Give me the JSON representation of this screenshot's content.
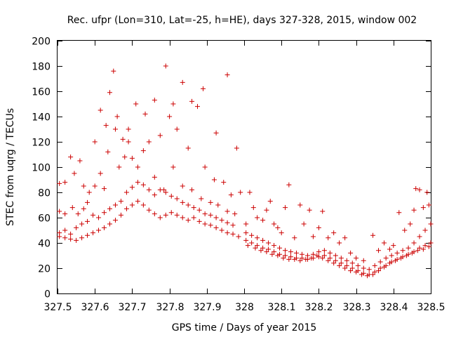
{
  "chart_data": {
    "type": "scatter",
    "title": "Rec. ufpr (Lon=310, Lat=-25, h=HE), days 327-328, 2015, window 002",
    "xlabel": "GPS time / Days of year 2015",
    "ylabel": "STEC from uqrg / TECUs",
    "xlim": [
      327.5,
      328.5
    ],
    "ylim": [
      0,
      200
    ],
    "xticks": [
      327.5,
      327.6,
      327.7,
      327.8,
      327.9,
      328.0,
      328.1,
      328.2,
      328.3,
      328.4,
      328.5
    ],
    "xtick_labels": [
      "327.5",
      "327.6",
      "327.7",
      "327.8",
      "327.9",
      "328",
      "328.1",
      "328.2",
      "328.3",
      "328.4",
      "328.5"
    ],
    "yticks": [
      0,
      20,
      40,
      60,
      80,
      100,
      120,
      140,
      160,
      180,
      200
    ],
    "ytick_labels": [
      "0",
      "20",
      "40",
      "60",
      "80",
      "100",
      "120",
      "140",
      "160",
      "180",
      "200"
    ],
    "grid": false,
    "marker": "+",
    "color": "#cc0000",
    "series": [
      {
        "points": [
          [
            327.505,
            87
          ],
          [
            327.52,
            88
          ],
          [
            327.535,
            108
          ],
          [
            327.545,
            95
          ],
          [
            327.56,
            105
          ],
          [
            327.57,
            85
          ],
          [
            327.585,
            80
          ],
          [
            327.6,
            120
          ],
          [
            327.615,
            145
          ],
          [
            327.63,
            133
          ],
          [
            327.64,
            159
          ],
          [
            327.65,
            176
          ],
          [
            327.66,
            140
          ],
          [
            327.675,
            122
          ],
          [
            327.69,
            130
          ],
          [
            327.71,
            150
          ],
          [
            327.735,
            142
          ],
          [
            327.76,
            153
          ],
          [
            327.79,
            180
          ],
          [
            327.81,
            150
          ],
          [
            327.835,
            167
          ],
          [
            327.86,
            152
          ],
          [
            327.89,
            162
          ],
          [
            327.955,
            173
          ],
          [
            327.925,
            127
          ],
          [
            327.98,
            115
          ],
          [
            327.505,
            65
          ],
          [
            327.52,
            63
          ],
          [
            327.54,
            68
          ],
          [
            327.555,
            63
          ],
          [
            327.57,
            67
          ],
          [
            327.58,
            72
          ],
          [
            327.6,
            85
          ],
          [
            327.615,
            95
          ],
          [
            327.625,
            83
          ],
          [
            327.635,
            112
          ],
          [
            327.655,
            130
          ],
          [
            327.665,
            100
          ],
          [
            327.68,
            108
          ],
          [
            327.69,
            120
          ],
          [
            327.7,
            107
          ],
          [
            327.715,
            100
          ],
          [
            327.73,
            113
          ],
          [
            327.745,
            120
          ],
          [
            327.76,
            92
          ],
          [
            327.775,
            125
          ],
          [
            327.785,
            82
          ],
          [
            327.8,
            140
          ],
          [
            327.81,
            100
          ],
          [
            327.82,
            130
          ],
          [
            327.835,
            85
          ],
          [
            327.85,
            115
          ],
          [
            327.86,
            82
          ],
          [
            327.875,
            148
          ],
          [
            327.885,
            75
          ],
          [
            327.895,
            100
          ],
          [
            327.91,
            72
          ],
          [
            327.92,
            90
          ],
          [
            327.93,
            70
          ],
          [
            327.945,
            88
          ],
          [
            327.955,
            65
          ],
          [
            327.965,
            78
          ],
          [
            327.975,
            63
          ],
          [
            327.99,
            80
          ],
          [
            327.505,
            48
          ],
          [
            327.52,
            50
          ],
          [
            327.535,
            47
          ],
          [
            327.55,
            52
          ],
          [
            327.565,
            55
          ],
          [
            327.58,
            57
          ],
          [
            327.595,
            62
          ],
          [
            327.61,
            60
          ],
          [
            327.625,
            64
          ],
          [
            327.64,
            67
          ],
          [
            327.655,
            70
          ],
          [
            327.67,
            73
          ],
          [
            327.685,
            80
          ],
          [
            327.7,
            84
          ],
          [
            327.715,
            88
          ],
          [
            327.73,
            86
          ],
          [
            327.745,
            82
          ],
          [
            327.76,
            78
          ],
          [
            327.775,
            82
          ],
          [
            327.79,
            80
          ],
          [
            327.805,
            77
          ],
          [
            327.82,
            75
          ],
          [
            327.835,
            72
          ],
          [
            327.85,
            70
          ],
          [
            327.865,
            68
          ],
          [
            327.88,
            66
          ],
          [
            327.895,
            63
          ],
          [
            327.91,
            62
          ],
          [
            327.925,
            60
          ],
          [
            327.94,
            58
          ],
          [
            327.955,
            56
          ],
          [
            327.97,
            54
          ],
          [
            327.505,
            45
          ],
          [
            327.52,
            44
          ],
          [
            327.535,
            43
          ],
          [
            327.55,
            42
          ],
          [
            327.565,
            44
          ],
          [
            327.58,
            46
          ],
          [
            327.595,
            48
          ],
          [
            327.61,
            50
          ],
          [
            327.625,
            52
          ],
          [
            327.64,
            55
          ],
          [
            327.655,
            58
          ],
          [
            327.67,
            62
          ],
          [
            327.685,
            67
          ],
          [
            327.7,
            70
          ],
          [
            327.715,
            73
          ],
          [
            327.73,
            70
          ],
          [
            327.745,
            66
          ],
          [
            327.76,
            63
          ],
          [
            327.775,
            60
          ],
          [
            327.79,
            62
          ],
          [
            327.805,
            64
          ],
          [
            327.82,
            62
          ],
          [
            327.835,
            60
          ],
          [
            327.85,
            58
          ],
          [
            327.865,
            60
          ],
          [
            327.88,
            57
          ],
          [
            327.895,
            55
          ],
          [
            327.91,
            54
          ],
          [
            327.925,
            52
          ],
          [
            327.94,
            50
          ],
          [
            327.955,
            48
          ],
          [
            327.97,
            47
          ],
          [
            327.985,
            45
          ],
          [
            328.005,
            55
          ],
          [
            328.015,
            80
          ],
          [
            328.025,
            68
          ],
          [
            328.035,
            60
          ],
          [
            328.05,
            58
          ],
          [
            328.06,
            66
          ],
          [
            328.07,
            73
          ],
          [
            328.08,
            55
          ],
          [
            328.09,
            52
          ],
          [
            328.1,
            48
          ],
          [
            328.11,
            68
          ],
          [
            328.12,
            86
          ],
          [
            328.135,
            44
          ],
          [
            328.15,
            70
          ],
          [
            328.16,
            55
          ],
          [
            328.175,
            66
          ],
          [
            328.185,
            45
          ],
          [
            328.2,
            52
          ],
          [
            328.21,
            65
          ],
          [
            328.225,
            44
          ],
          [
            328.24,
            48
          ],
          [
            328.255,
            40
          ],
          [
            328.27,
            44
          ],
          [
            328.285,
            32
          ],
          [
            328.3,
            28
          ],
          [
            328.32,
            26
          ],
          [
            328.345,
            46
          ],
          [
            328.36,
            34
          ],
          [
            328.375,
            40
          ],
          [
            328.39,
            35
          ],
          [
            328.4,
            38
          ],
          [
            328.415,
            64
          ],
          [
            328.43,
            50
          ],
          [
            328.445,
            55
          ],
          [
            328.455,
            66
          ],
          [
            328.46,
            83
          ],
          [
            328.47,
            82
          ],
          [
            328.48,
            68
          ],
          [
            328.49,
            80
          ],
          [
            328.495,
            70
          ],
          [
            328.005,
            48
          ],
          [
            328.02,
            46
          ],
          [
            328.035,
            44
          ],
          [
            328.05,
            42
          ],
          [
            328.065,
            40
          ],
          [
            328.08,
            38
          ],
          [
            328.095,
            36
          ],
          [
            328.11,
            34
          ],
          [
            328.125,
            33
          ],
          [
            328.14,
            32
          ],
          [
            328.155,
            31
          ],
          [
            328.17,
            30
          ],
          [
            328.185,
            31
          ],
          [
            328.2,
            33
          ],
          [
            328.215,
            34
          ],
          [
            328.23,
            32
          ],
          [
            328.245,
            30
          ],
          [
            328.26,
            28
          ],
          [
            328.275,
            26
          ],
          [
            328.29,
            24
          ],
          [
            328.305,
            22
          ],
          [
            328.32,
            20
          ],
          [
            328.335,
            19
          ],
          [
            328.35,
            22
          ],
          [
            328.365,
            25
          ],
          [
            328.38,
            28
          ],
          [
            328.395,
            30
          ],
          [
            328.41,
            32
          ],
          [
            328.425,
            34
          ],
          [
            328.44,
            36
          ],
          [
            328.455,
            40
          ],
          [
            328.47,
            45
          ],
          [
            328.485,
            50
          ],
          [
            328.5,
            55
          ],
          [
            328.005,
            42
          ],
          [
            328.02,
            40
          ],
          [
            328.035,
            38
          ],
          [
            328.05,
            36
          ],
          [
            328.065,
            35
          ],
          [
            328.08,
            33
          ],
          [
            328.095,
            31
          ],
          [
            328.11,
            30
          ],
          [
            328.125,
            29
          ],
          [
            328.14,
            28
          ],
          [
            328.155,
            28
          ],
          [
            328.17,
            27
          ],
          [
            328.185,
            28
          ],
          [
            328.2,
            29
          ],
          [
            328.215,
            30
          ],
          [
            328.23,
            28
          ],
          [
            328.245,
            26
          ],
          [
            328.26,
            24
          ],
          [
            328.275,
            22
          ],
          [
            328.29,
            20
          ],
          [
            328.305,
            18
          ],
          [
            328.32,
            16
          ],
          [
            328.335,
            15
          ],
          [
            328.35,
            17
          ],
          [
            328.365,
            20
          ],
          [
            328.38,
            22
          ],
          [
            328.395,
            25
          ],
          [
            328.41,
            27
          ],
          [
            328.425,
            29
          ],
          [
            328.44,
            31
          ],
          [
            328.455,
            33
          ],
          [
            328.47,
            36
          ],
          [
            328.485,
            38
          ],
          [
            328.5,
            40
          ],
          [
            328.01,
            38
          ],
          [
            328.03,
            36
          ],
          [
            328.045,
            34
          ],
          [
            328.06,
            33
          ],
          [
            328.075,
            31
          ],
          [
            328.09,
            30
          ],
          [
            328.105,
            28
          ],
          [
            328.12,
            27
          ],
          [
            328.135,
            27
          ],
          [
            328.15,
            26
          ],
          [
            328.165,
            27
          ],
          [
            328.18,
            28
          ],
          [
            328.195,
            30
          ],
          [
            328.21,
            28
          ],
          [
            328.225,
            26
          ],
          [
            328.24,
            24
          ],
          [
            328.255,
            22
          ],
          [
            328.27,
            20
          ],
          [
            328.285,
            18
          ],
          [
            328.3,
            17
          ],
          [
            328.315,
            15
          ],
          [
            328.33,
            14
          ],
          [
            328.345,
            15
          ],
          [
            328.36,
            18
          ],
          [
            328.375,
            21
          ],
          [
            328.39,
            24
          ],
          [
            328.405,
            26
          ],
          [
            328.42,
            28
          ],
          [
            328.435,
            30
          ],
          [
            328.45,
            32
          ],
          [
            328.465,
            34
          ],
          [
            328.48,
            35
          ],
          [
            328.495,
            37
          ]
        ]
      }
    ]
  }
}
